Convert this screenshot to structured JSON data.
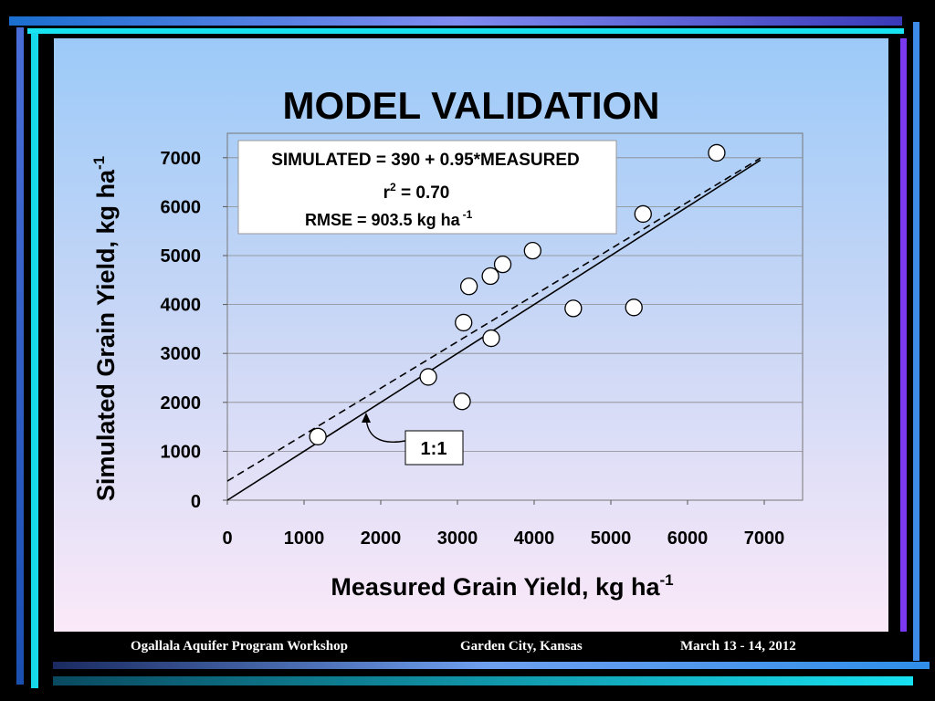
{
  "slide": {
    "title": "MODEL VALIDATION"
  },
  "footer": {
    "left": "Ogallala Aquifer Program Workshop",
    "center": "Garden City, Kansas",
    "right": "March 13 - 14, 2012"
  },
  "chart_data": {
    "type": "scatter",
    "xlabel": "Measured Grain Yield, kg ha",
    "xlabel_sup": "-1",
    "ylabel": "Simulated Grain Yield, kg ha",
    "ylabel_sup": "-1",
    "xlim": [
      0,
      7500
    ],
    "ylim": [
      0,
      7500
    ],
    "x_ticks": [
      0,
      1000,
      2000,
      3000,
      4000,
      5000,
      6000,
      7000
    ],
    "y_ticks": [
      0,
      1000,
      2000,
      3000,
      4000,
      5000,
      6000,
      7000
    ],
    "grid": "horizontal",
    "points": [
      {
        "x": 1180,
        "y": 1300
      },
      {
        "x": 2620,
        "y": 2520
      },
      {
        "x": 3060,
        "y": 2020
      },
      {
        "x": 3080,
        "y": 3630
      },
      {
        "x": 3150,
        "y": 4370
      },
      {
        "x": 3440,
        "y": 3310
      },
      {
        "x": 3430,
        "y": 4580
      },
      {
        "x": 3590,
        "y": 4820
      },
      {
        "x": 3980,
        "y": 5100
      },
      {
        "x": 4510,
        "y": 3920
      },
      {
        "x": 5300,
        "y": 3940
      },
      {
        "x": 5420,
        "y": 5850
      },
      {
        "x": 6380,
        "y": 7100
      }
    ],
    "lines": [
      {
        "kind": "regression",
        "style": "dashed",
        "intercept": 390,
        "slope": 0.95,
        "x_range": [
          0,
          6950
        ]
      },
      {
        "kind": "one_to_one",
        "style": "solid",
        "intercept": 0,
        "slope": 1,
        "x_range": [
          0,
          6950
        ]
      }
    ],
    "annotations": {
      "equation": "SIMULATED = 390 + 0.95*MEASURED",
      "r2_base": "r",
      "r2_sup": "2",
      "r2_value": " = 0.70",
      "rmse_text": "RMSE = 903.5 kg ha",
      "rmse_sup": "-1",
      "one_to_one_label": "1:1"
    }
  }
}
